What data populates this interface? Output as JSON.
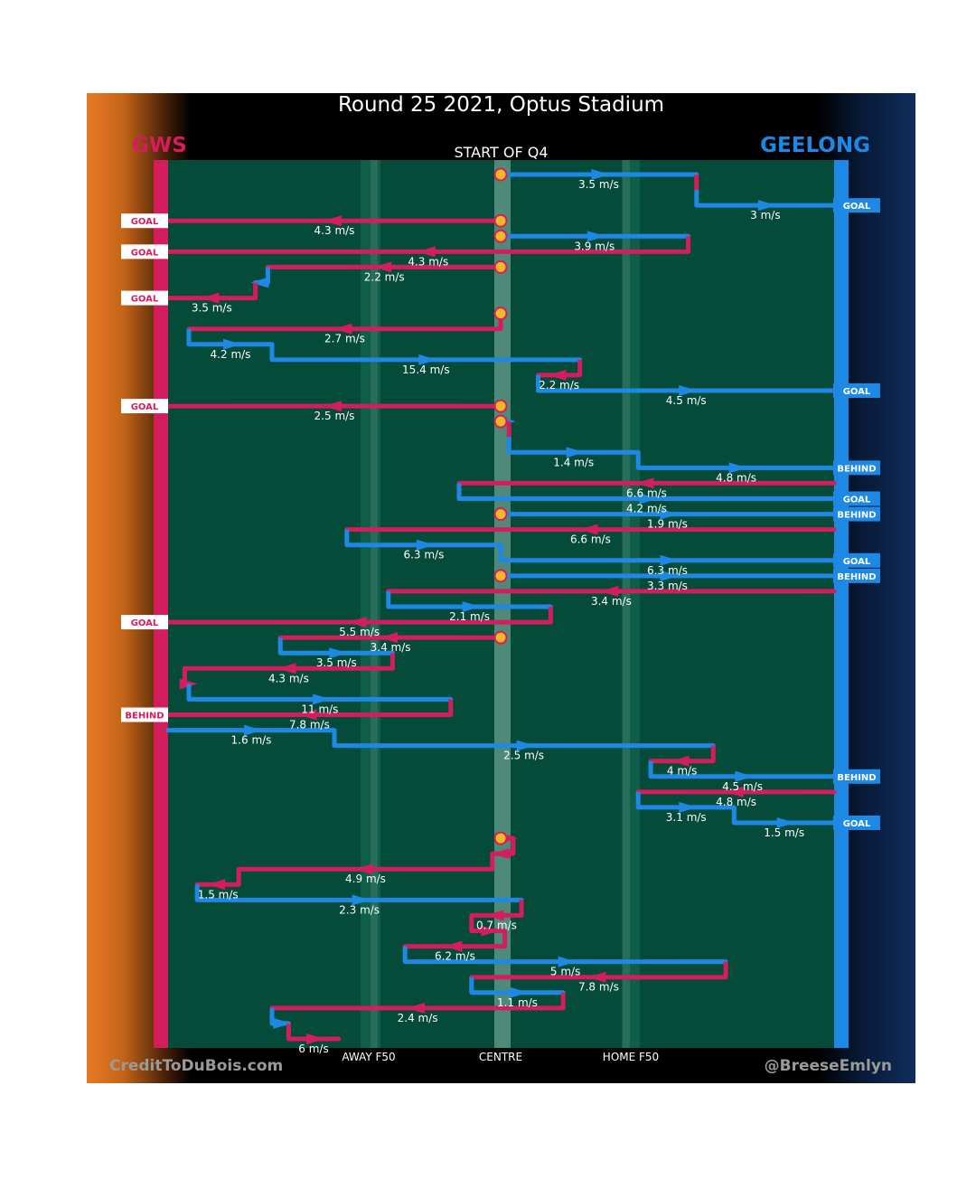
{
  "title": "Round 25 2021, Optus Stadium",
  "team_left": "GWS",
  "team_right": "GEELONG",
  "start_label": "START OF Q4",
  "axis_labels": [
    "AWAY F50",
    "CENTRE",
    "HOME F50"
  ],
  "credit_left": "CreditToDuBois.com",
  "credit_right": "@BreeseEmlyn",
  "colors": {
    "gws": "#d41d5c",
    "geelong": "#1e88e5",
    "field": "#054b3a",
    "marker": "#f2b825"
  },
  "chart_data": {
    "type": "line",
    "title": "Round 25 2021, Optus Stadium",
    "subtitle": "START OF Q4",
    "x_range_m": [
      -80,
      80
    ],
    "x_note": "field position in metres from centre; negative = GWS goal end (left), positive = Geelong goal end (right)",
    "chains": [
      {
        "team": "geelong",
        "outcome": "GOAL",
        "segments": [
          {
            "team": "geelong",
            "x0": 0,
            "x1": 47,
            "speed": "3.5 m/s"
          },
          {
            "team": "gws",
            "x0": 47,
            "x1": 47,
            "speed": ""
          },
          {
            "team": "geelong",
            "x0": 47,
            "x1": 80,
            "speed": "3 m/s"
          }
        ]
      },
      {
        "team": "gws",
        "outcome": "GOAL",
        "segments": [
          {
            "team": "gws",
            "x0": 0,
            "x1": -80,
            "speed": "4.3 m/s"
          }
        ]
      },
      {
        "team": "gws",
        "outcome": "GOAL",
        "segments": [
          {
            "team": "geelong",
            "x0": 0,
            "x1": 45,
            "speed": "3.9 m/s"
          },
          {
            "team": "gws",
            "x0": 45,
            "x1": -80,
            "speed": "4.3 m/s"
          }
        ]
      },
      {
        "team": "gws",
        "outcome": "GOAL",
        "segments": [
          {
            "team": "gws",
            "x0": 0,
            "x1": -56,
            "speed": "2.2 m/s"
          },
          {
            "team": "geelong",
            "x0": -56,
            "x1": -59,
            "speed": ""
          },
          {
            "team": "gws",
            "x0": -59,
            "x1": -80,
            "speed": "3.5 m/s"
          }
        ]
      },
      {
        "team": "geelong",
        "outcome": "GOAL",
        "segments": [
          {
            "team": "geelong",
            "x0": 0,
            "x1": 0,
            "speed": ""
          },
          {
            "team": "gws",
            "x0": 0,
            "x1": -75,
            "speed": "2.7 m/s"
          },
          {
            "team": "geelong",
            "x0": -75,
            "x1": -55,
            "speed": "4.2 m/s"
          },
          {
            "team": "geelong",
            "x0": -55,
            "x1": 19,
            "speed": "15.4 m/s"
          },
          {
            "team": "gws",
            "x0": 19,
            "x1": 9,
            "speed": "2.2 m/s"
          },
          {
            "team": "geelong",
            "x0": 9,
            "x1": 80,
            "speed": "4.5 m/s"
          }
        ]
      },
      {
        "team": "gws",
        "outcome": "GOAL",
        "segments": [
          {
            "team": "gws",
            "x0": 0,
            "x1": -80,
            "speed": "2.5 m/s"
          }
        ]
      },
      {
        "team": "geelong",
        "outcome": "BEHIND",
        "segments": [
          {
            "team": "geelong",
            "x0": 0,
            "x1": 2,
            "speed": ""
          },
          {
            "team": "gws",
            "x0": 2,
            "x1": 2,
            "speed": ""
          },
          {
            "team": "geelong",
            "x0": 2,
            "x1": 33,
            "speed": "1.4 m/s"
          },
          {
            "team": "geelong",
            "x0": 33,
            "x1": 80,
            "speed": "4.8 m/s"
          }
        ]
      },
      {
        "team": "geelong",
        "outcome": "GOAL",
        "segments": [
          {
            "team": "gws",
            "x0": 80,
            "x1": -10,
            "speed": "6.6 m/s"
          },
          {
            "team": "geelong",
            "x0": -10,
            "x1": 80,
            "speed": "4.2 m/s"
          }
        ]
      },
      {
        "team": "geelong",
        "outcome": "BEHIND",
        "segments": [
          {
            "team": "geelong",
            "x0": 0,
            "x1": 80,
            "speed": "1.9 m/s"
          }
        ]
      },
      {
        "team": "geelong",
        "outcome": "GOAL",
        "segments": [
          {
            "team": "gws",
            "x0": 80,
            "x1": -37,
            "speed": "6.6 m/s"
          },
          {
            "team": "geelong",
            "x0": -37,
            "x1": 0,
            "speed": "6.3 m/s"
          },
          {
            "team": "geelong",
            "x0": 0,
            "x1": 80,
            "speed": "6.3 m/s"
          }
        ]
      },
      {
        "team": "geelong",
        "outcome": "BEHIND",
        "segments": [
          {
            "team": "geelong",
            "x0": 0,
            "x1": 80,
            "speed": "3.3 m/s"
          }
        ]
      },
      {
        "team": "gws",
        "outcome": "GOAL",
        "segments": [
          {
            "team": "gws",
            "x0": 80,
            "x1": -27,
            "speed": "3.4 m/s"
          },
          {
            "team": "geelong",
            "x0": -27,
            "x1": 12,
            "speed": "2.1 m/s"
          },
          {
            "team": "gws",
            "x0": 12,
            "x1": -80,
            "speed": "5.5 m/s"
          }
        ]
      },
      {
        "team": "gws",
        "outcome": "BEHIND",
        "segments": [
          {
            "team": "gws",
            "x0": 0,
            "x1": -53,
            "speed": "3.4 m/s"
          },
          {
            "team": "geelong",
            "x0": -53,
            "x1": -26,
            "speed": "3.5 m/s"
          },
          {
            "team": "gws",
            "x0": -26,
            "x1": -76,
            "speed": "4.3 m/s"
          },
          {
            "team": "gws",
            "x0": -76,
            "x1": -75,
            "speed": ""
          },
          {
            "team": "geelong",
            "x0": -75,
            "x1": -12,
            "speed": "11 m/s"
          },
          {
            "team": "gws",
            "x0": -12,
            "x1": -80,
            "speed": "7.8 m/s"
          }
        ]
      },
      {
        "team": "geelong",
        "outcome": "BEHIND",
        "segments": [
          {
            "team": "geelong",
            "x0": -80,
            "x1": -40,
            "speed": "1.6 m/s"
          },
          {
            "team": "geelong",
            "x0": -40,
            "x1": 51,
            "speed": "2.5 m/s"
          },
          {
            "team": "gws",
            "x0": 51,
            "x1": 36,
            "speed": "4 m/s"
          },
          {
            "team": "geelong",
            "x0": 36,
            "x1": 80,
            "speed": "4.5 m/s"
          }
        ]
      },
      {
        "team": "geelong",
        "outcome": "GOAL",
        "segments": [
          {
            "team": "gws",
            "x0": 80,
            "x1": 33,
            "speed": "4.8 m/s"
          },
          {
            "team": "geelong",
            "x0": 33,
            "x1": 56,
            "speed": "3.1 m/s"
          },
          {
            "team": "geelong",
            "x0": 56,
            "x1": 80,
            "speed": "1.5 m/s"
          }
        ]
      },
      {
        "team": "gws",
        "outcome": "",
        "segments": [
          {
            "team": "gws",
            "x0": 0,
            "x1": 3,
            "speed": ""
          },
          {
            "team": "gws",
            "x0": 3,
            "x1": -2,
            "speed": ""
          },
          {
            "team": "gws",
            "x0": -2,
            "x1": -63,
            "speed": "4.9 m/s"
          },
          {
            "team": "gws",
            "x0": -63,
            "x1": -73,
            "speed": "1.5 m/s"
          },
          {
            "team": "geelong",
            "x0": -73,
            "x1": 5,
            "speed": "2.3 m/s"
          },
          {
            "team": "gws",
            "x0": 5,
            "x1": -7,
            "speed": "0.7 m/s"
          },
          {
            "team": "gws",
            "x0": -7,
            "x1": 1,
            "speed": ""
          },
          {
            "team": "gws",
            "x0": 1,
            "x1": -23,
            "speed": "6.2 m/s"
          },
          {
            "team": "geelong",
            "x0": -23,
            "x1": 54,
            "speed": "5 m/s"
          },
          {
            "team": "gws",
            "x0": 54,
            "x1": -7,
            "speed": "7.8 m/s"
          },
          {
            "team": "geelong",
            "x0": -7,
            "x1": 15,
            "speed": "1.1 m/s"
          },
          {
            "team": "gws",
            "x0": 15,
            "x1": -55,
            "speed": "2.4 m/s"
          },
          {
            "team": "geelong",
            "x0": -55,
            "x1": -51,
            "speed": ""
          },
          {
            "team": "gws",
            "x0": -51,
            "x1": -39,
            "speed": "6 m/s"
          }
        ]
      }
    ]
  }
}
